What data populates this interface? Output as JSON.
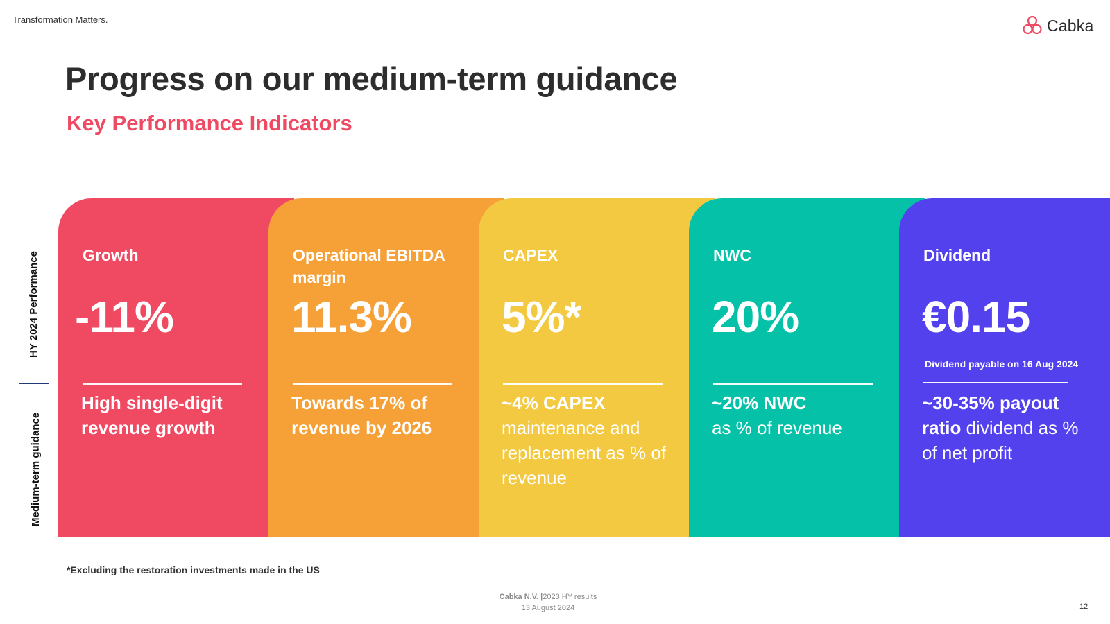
{
  "header": {
    "tagline": "Transformation Matters.",
    "brand": "Cabka"
  },
  "title": "Progress on our medium-term guidance",
  "subtitle": "Key Performance Indicators",
  "side_labels": {
    "performance": "HY 2024 Performance",
    "guidance": "Medium-term guidance"
  },
  "colors": {
    "growth": "#f04a63",
    "ebitda": "#f6a038",
    "capex": "#f2c940",
    "nwc": "#05c1a7",
    "dividend": "#5341ee",
    "accent": "#ee4a63"
  },
  "cards": [
    {
      "label": "Growth",
      "value": "-11%",
      "note": "",
      "desc_bold": "High single-digit revenue growth",
      "desc_rest": ""
    },
    {
      "label": "Operational EBITDA margin",
      "value": "11.3%",
      "note": "",
      "desc_bold": "Towards 17% of revenue by 2026",
      "desc_rest": ""
    },
    {
      "label": "CAPEX",
      "value": "5%*",
      "note": "",
      "desc_bold": "~4% CAPEX",
      "desc_rest": "maintenance and replacement as % of revenue"
    },
    {
      "label": "NWC",
      "value": "20%",
      "note": "",
      "desc_bold": "~20% NWC",
      "desc_rest": "as % of revenue"
    },
    {
      "label": "Dividend",
      "value": "€0.15",
      "note": "Dividend payable on 16 Aug 2024",
      "desc_bold": "~30-35% payout ratio",
      "desc_rest": "dividend as % of net profit"
    }
  ],
  "footnote": "*Excluding the restoration investments made in the US",
  "footer": {
    "company": "Cabka N.V. |",
    "doc": "2023 HY results",
    "date": "13 August 2024",
    "page": "12"
  }
}
